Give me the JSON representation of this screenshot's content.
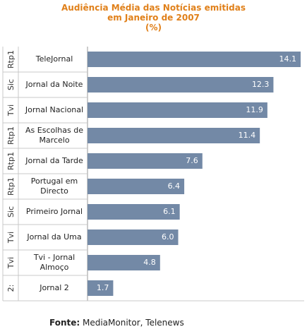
{
  "chart_data": {
    "type": "bar",
    "orientation": "horizontal",
    "title_lines": [
      "Audiência Média das Notícias emitidas",
      "em Janeiro de 2007",
      "(%)"
    ],
    "categories": [
      "TeleJornal",
      "Jornal da Noite",
      "Jornal Nacional",
      "As Escolhas de Marcelo",
      "Jornal da Tarde",
      "Portugal em Directo",
      "Primeiro Jornal",
      "Jornal da Uma",
      "Tvi - Jornal Almoço",
      "Jornal 2"
    ],
    "category_lines": [
      [
        "TeleJornal"
      ],
      [
        "Jornal da Noite"
      ],
      [
        "Jornal Nacional"
      ],
      [
        "As Escolhas de",
        "Marcelo"
      ],
      [
        "Jornal da Tarde"
      ],
      [
        "Portugal em",
        "Directo"
      ],
      [
        "Primeiro Jornal"
      ],
      [
        "Jornal da Uma"
      ],
      [
        "Tvi - Jornal",
        "Almoço"
      ],
      [
        "Jornal 2"
      ]
    ],
    "groups": [
      "Rtp1",
      "Sic",
      "Tvi",
      "Rtp1",
      "Rtp1",
      "Rtp1",
      "Sic",
      "Tvi",
      "Tvi",
      "2:"
    ],
    "values": [
      14.1,
      12.3,
      11.9,
      11.4,
      7.6,
      6.4,
      6.1,
      6.0,
      4.8,
      1.7
    ],
    "value_labels": [
      "14.1",
      "12.3",
      "11.9",
      "11.4",
      "7.6",
      "6.4",
      "6.1",
      "6.0",
      "4.8",
      "1.7"
    ],
    "xlim": [
      0,
      14.1
    ],
    "grid": false,
    "bar_color": "#7389a6",
    "label_color": "#ffffff",
    "title_color": "#e0801a"
  },
  "source": {
    "label": "Fonte:",
    "text": " MediaMonitor, Telenews"
  }
}
